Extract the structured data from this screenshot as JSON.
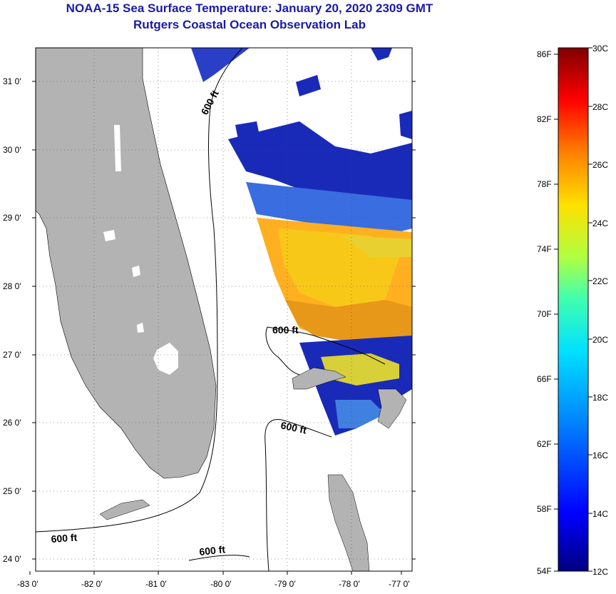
{
  "header": {
    "title": "NOAA-15 Sea Surface Temperature:  January 20, 2020 2309 GMT",
    "subtitle": "Rutgers Coastal Ocean Observation Lab"
  },
  "map": {
    "lat_ticks": [
      "24 0'",
      "25 0'",
      "26 0'",
      "27 0'",
      "28 0'",
      "29 0'",
      "30 0'",
      "31 0'"
    ],
    "lon_ticks": [
      "-83 0'",
      "-82 0'",
      "-81 0'",
      "-80 0'",
      "-79 0'",
      "-78 0'",
      "-77 0'"
    ],
    "contour_label": "600 ft",
    "colors": {
      "land": "#b3b3b3",
      "ocean": "#ffffff"
    }
  },
  "colorbar": {
    "fahrenheit": [
      "86F",
      "82F",
      "78F",
      "74F",
      "70F",
      "66F",
      "62F",
      "58F",
      "54F"
    ],
    "celsius": [
      "30C",
      "28C",
      "26C",
      "24C",
      "22C",
      "20C",
      "18C",
      "16C",
      "14C",
      "12C"
    ],
    "colors": [
      "#000080",
      "#0000ff",
      "#0080ff",
      "#00e0ff",
      "#40ffb0",
      "#b0ff40",
      "#ffe000",
      "#ff8000",
      "#ff0000",
      "#800000"
    ]
  }
}
